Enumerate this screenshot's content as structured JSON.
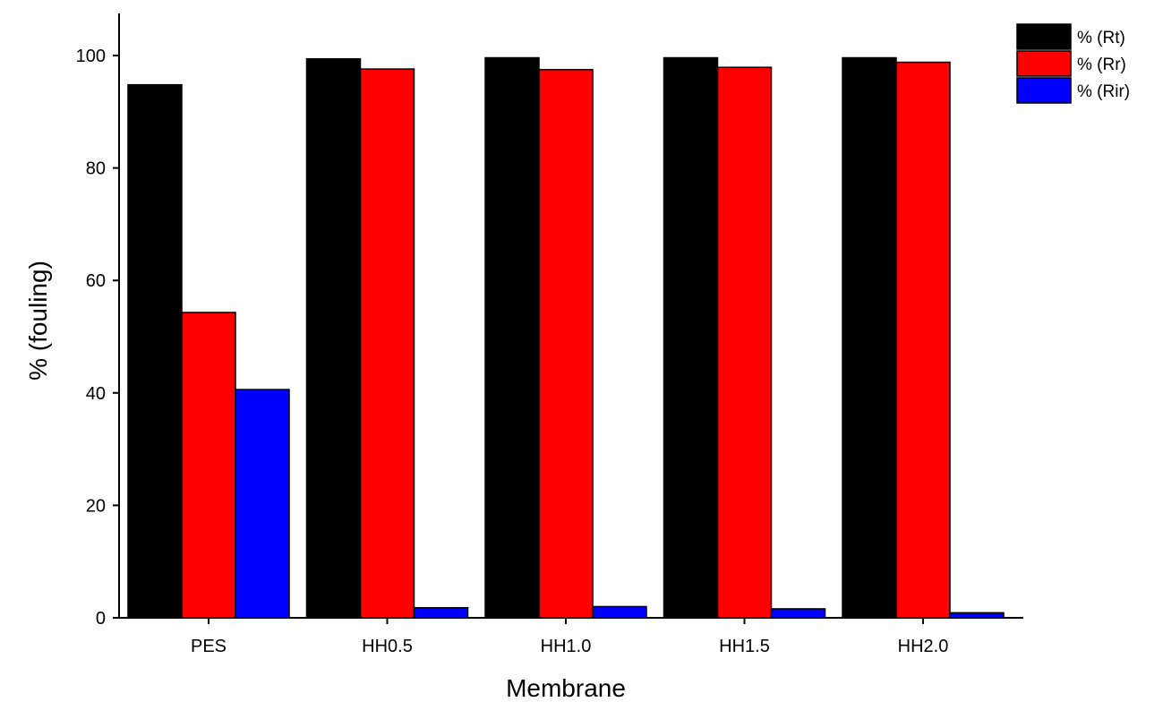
{
  "chart_data": {
    "type": "bar",
    "title": "",
    "xlabel": "Membrane",
    "ylabel": "% (fouling)",
    "ylim": [
      0,
      107
    ],
    "yticks": [
      0,
      20,
      40,
      60,
      80,
      100
    ],
    "categories": [
      "PES",
      "HH0.5",
      "HH1.0",
      "HH1.5",
      "HH2.0"
    ],
    "series": [
      {
        "name": "% (Rt)",
        "color": "#000000",
        "values": [
          94.8,
          99.4,
          99.6,
          99.6,
          99.6
        ]
      },
      {
        "name": "% (Rr)",
        "color": "#ff0000",
        "values": [
          54.3,
          97.6,
          97.5,
          97.9,
          98.8
        ]
      },
      {
        "name": "% (Rir)",
        "color": "#0000ff",
        "values": [
          40.6,
          1.8,
          2.0,
          1.6,
          0.9
        ]
      }
    ],
    "grid": false,
    "legend_position": "top-right"
  }
}
